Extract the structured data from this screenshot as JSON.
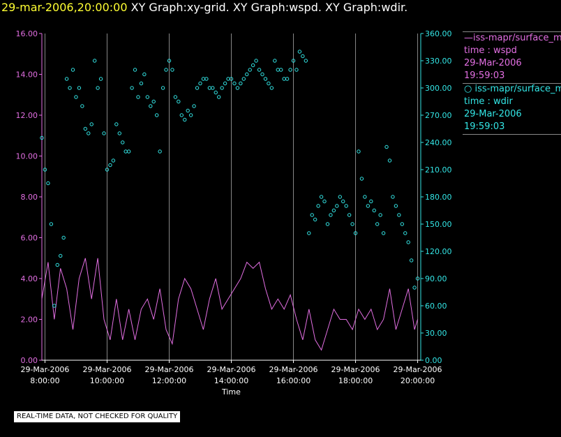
{
  "title": {
    "datetime": "29-mar-2006,20:00:00",
    "graphs": "XY Graph:xy-grid.  XY Graph:wspd.  XY Graph:wdir."
  },
  "legend": {
    "series1": {
      "marker": "—",
      "name": "iss-mapr/surface_m",
      "var": "time : wspd",
      "date": "29-Mar-2006",
      "time": "19:59:03"
    },
    "series2": {
      "marker": "○",
      "name": "iss-mapr/surface_m",
      "var": "time : wdir",
      "date": "29-Mar-2006",
      "time": "19:59:03"
    }
  },
  "disclaimer": "REAL-TIME DATA, NOT CHECKED FOR QUALITY",
  "colors": {
    "wspd": "#e36fe3",
    "wdir": "#33e6e6",
    "grid": "#888888",
    "axis": "#ffffff"
  },
  "chart_data": {
    "type": "line",
    "title": "XY Graph:xy-grid.  XY Graph:wspd.  XY Graph:wdir.",
    "xlabel": "Time",
    "ylabel_left": "",
    "ylabel_right": "",
    "xlim": [
      7.9,
      20.1
    ],
    "ylim_left": [
      0,
      16
    ],
    "ylim_right": [
      0,
      360
    ],
    "x_ticks": [
      {
        "value": 8,
        "date": "29-Mar-2006",
        "time": "8:00:00"
      },
      {
        "value": 10,
        "date": "29-Mar-2006",
        "time": "10:00:00"
      },
      {
        "value": 12,
        "date": "29-Mar-2006",
        "time": "12:00:00"
      },
      {
        "value": 14,
        "date": "29-Mar-2006",
        "time": "14:00:00"
      },
      {
        "value": 16,
        "date": "29-Mar-2006",
        "time": "16:00:00"
      },
      {
        "value": 18,
        "date": "29-Mar-2006",
        "time": "18:00:00"
      },
      {
        "value": 20,
        "date": "29-Mar-2006",
        "time": "20:00:00"
      }
    ],
    "y_ticks_left": [
      "0.00",
      "2.00",
      "4.00",
      "6.00",
      "8.00",
      "10.00",
      "12.00",
      "14.00",
      "16.00"
    ],
    "y_ticks_right": [
      "0.00",
      "30.00",
      "60.00",
      "90.00",
      "120.00",
      "150.00",
      "180.00",
      "210.00",
      "240.00",
      "270.00",
      "300.00",
      "330.00",
      "360.00"
    ],
    "grid": true,
    "series": [
      {
        "name": "iss-mapr/surface_m time : wspd",
        "style": "line",
        "axis": "left",
        "x": [
          7.9,
          8.1,
          8.3,
          8.5,
          8.7,
          8.9,
          9.1,
          9.3,
          9.5,
          9.7,
          9.9,
          10.1,
          10.3,
          10.5,
          10.7,
          10.9,
          11.1,
          11.3,
          11.5,
          11.7,
          11.9,
          12.1,
          12.3,
          12.5,
          12.7,
          12.9,
          13.1,
          13.3,
          13.5,
          13.7,
          13.9,
          14.1,
          14.3,
          14.5,
          14.7,
          14.9,
          15.1,
          15.3,
          15.5,
          15.7,
          15.9,
          16.1,
          16.3,
          16.5,
          16.7,
          16.9,
          17.1,
          17.3,
          17.5,
          17.7,
          17.9,
          18.1,
          18.3,
          18.5,
          18.7,
          18.9,
          19.1,
          19.3,
          19.5,
          19.7,
          19.9,
          20.0
        ],
        "values": [
          3.0,
          4.8,
          2.0,
          4.5,
          3.5,
          1.5,
          4.0,
          5.0,
          3.0,
          5.0,
          2.0,
          1.0,
          3.0,
          1.0,
          2.5,
          1.0,
          2.5,
          3.0,
          2.0,
          3.5,
          1.5,
          0.8,
          3.0,
          4.0,
          3.5,
          2.5,
          1.5,
          3.0,
          4.0,
          2.5,
          3.0,
          3.5,
          4.0,
          4.8,
          4.5,
          4.8,
          3.5,
          2.5,
          3.0,
          2.5,
          3.2,
          2.0,
          1.0,
          2.5,
          1.0,
          0.5,
          1.5,
          2.5,
          2.0,
          2.0,
          1.5,
          2.5,
          2.0,
          2.5,
          1.5,
          2.0,
          3.5,
          1.5,
          2.5,
          3.5,
          1.5,
          2.0
        ]
      },
      {
        "name": "iss-mapr/surface_m time : wdir",
        "style": "scatter",
        "axis": "right",
        "x": [
          7.9,
          8.0,
          8.1,
          8.2,
          8.3,
          8.4,
          8.5,
          8.6,
          8.7,
          8.8,
          8.9,
          9.0,
          9.1,
          9.2,
          9.3,
          9.4,
          9.5,
          9.6,
          9.7,
          9.8,
          9.9,
          10.0,
          10.1,
          10.2,
          10.3,
          10.4,
          10.5,
          10.6,
          10.7,
          10.8,
          10.9,
          11.0,
          11.1,
          11.2,
          11.3,
          11.4,
          11.5,
          11.6,
          11.7,
          11.8,
          11.9,
          12.0,
          12.1,
          12.2,
          12.3,
          12.4,
          12.5,
          12.6,
          12.7,
          12.8,
          12.9,
          13.0,
          13.1,
          13.2,
          13.3,
          13.4,
          13.5,
          13.6,
          13.7,
          13.8,
          13.9,
          14.0,
          14.1,
          14.2,
          14.3,
          14.4,
          14.5,
          14.6,
          14.7,
          14.8,
          14.9,
          15.0,
          15.1,
          15.2,
          15.3,
          15.4,
          15.5,
          15.6,
          15.7,
          15.8,
          15.9,
          16.0,
          16.1,
          16.2,
          16.3,
          16.4,
          16.5,
          16.6,
          16.7,
          16.8,
          16.9,
          17.0,
          17.1,
          17.2,
          17.3,
          17.4,
          17.5,
          17.6,
          17.7,
          17.8,
          17.9,
          18.0,
          18.1,
          18.2,
          18.3,
          18.4,
          18.5,
          18.6,
          18.7,
          18.8,
          18.9,
          19.0,
          19.1,
          19.2,
          19.3,
          19.4,
          19.5,
          19.6,
          19.7,
          19.8,
          19.9,
          20.0
        ],
        "values": [
          245,
          210,
          195,
          150,
          60,
          105,
          115,
          135,
          310,
          300,
          320,
          290,
          300,
          280,
          255,
          250,
          260,
          330,
          300,
          310,
          250,
          210,
          215,
          220,
          260,
          250,
          240,
          230,
          230,
          300,
          320,
          290,
          305,
          315,
          290,
          280,
          285,
          270,
          230,
          300,
          320,
          330,
          320,
          290,
          285,
          270,
          265,
          275,
          270,
          280,
          300,
          305,
          310,
          310,
          300,
          300,
          295,
          290,
          300,
          305,
          310,
          310,
          305,
          300,
          305,
          310,
          315,
          320,
          325,
          330,
          320,
          315,
          310,
          305,
          300,
          330,
          320,
          320,
          310,
          310,
          320,
          330,
          320,
          340,
          335,
          330,
          140,
          160,
          155,
          170,
          180,
          175,
          150,
          160,
          165,
          170,
          180,
          175,
          170,
          160,
          150,
          140,
          230,
          200,
          180,
          170,
          175,
          165,
          150,
          160,
          140,
          235,
          220,
          180,
          170,
          160,
          150,
          140,
          130,
          110,
          80,
          90
        ]
      }
    ]
  }
}
